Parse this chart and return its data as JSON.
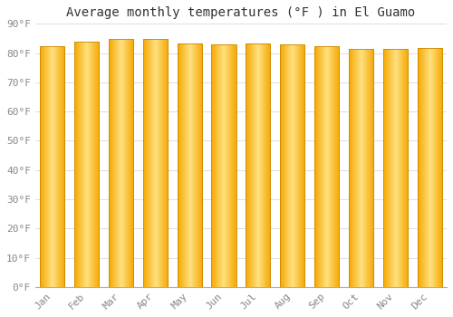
{
  "title": "Average monthly temperatures (°F ) in El Guamo",
  "months": [
    "Jan",
    "Feb",
    "Mar",
    "Apr",
    "May",
    "Jun",
    "Jul",
    "Aug",
    "Sep",
    "Oct",
    "Nov",
    "Dec"
  ],
  "values": [
    82.4,
    83.8,
    84.7,
    84.7,
    83.3,
    83.0,
    83.3,
    82.9,
    82.2,
    81.3,
    81.3,
    81.7
  ],
  "bar_color_center": "#FFE080",
  "bar_color_edge": "#F5A800",
  "ylim": [
    0,
    90
  ],
  "yticks": [
    0,
    10,
    20,
    30,
    40,
    50,
    60,
    70,
    80,
    90
  ],
  "ytick_labels": [
    "0°F",
    "10°F",
    "20°F",
    "30°F",
    "40°F",
    "50°F",
    "60°F",
    "70°F",
    "80°F",
    "90°F"
  ],
  "background_color": "#FFFFFF",
  "grid_color": "#DDDDDD",
  "title_fontsize": 10,
  "tick_fontsize": 8,
  "bar_edge_color": "#CC8800",
  "bar_width": 0.72
}
